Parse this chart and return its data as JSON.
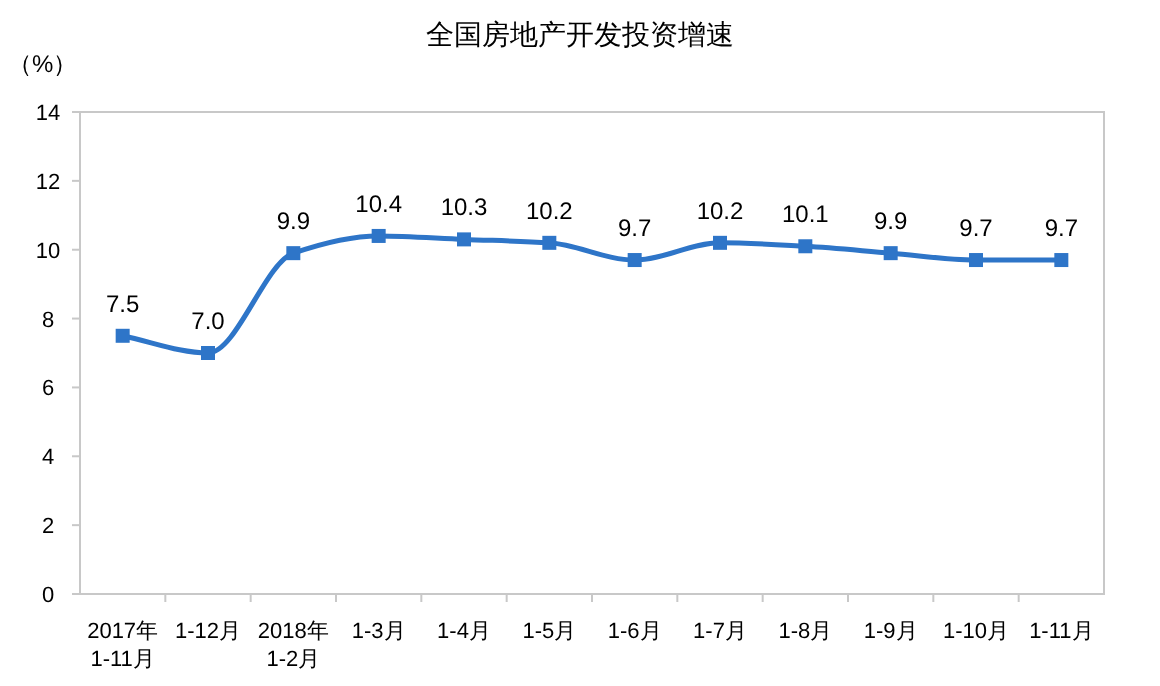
{
  "chart_data": {
    "type": "line",
    "title": "全国房地产开发投资增速",
    "ylabel": "（%）",
    "categories": [
      "2017年\n1-11月",
      "1-12月",
      "2018年\n1-2月",
      "1-3月",
      "1-4月",
      "1-5月",
      "1-6月",
      "1-7月",
      "1-8月",
      "1-9月",
      "1-10月",
      "1-11月"
    ],
    "series": [
      {
        "color": "#2e75c8",
        "values": [
          7.5,
          7.0,
          9.9,
          10.4,
          10.3,
          10.2,
          9.7,
          10.2,
          10.1,
          9.9,
          9.7,
          9.7
        ],
        "value_labels": [
          "7.5",
          "7.0",
          "9.9",
          "10.4",
          "10.3",
          "10.2",
          "9.7",
          "10.2",
          "10.1",
          "9.9",
          "9.7",
          "9.7"
        ]
      }
    ],
    "ylim": [
      0,
      14
    ],
    "yticks": [
      0,
      2,
      4,
      6,
      8,
      10,
      12,
      14
    ],
    "marker": "square",
    "grid": false
  }
}
